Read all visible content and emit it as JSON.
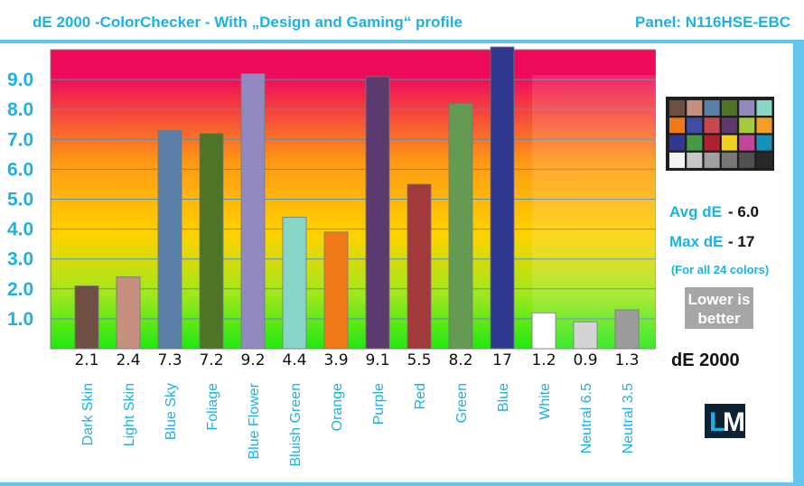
{
  "header": {
    "title": "dE 2000 -ColorChecker - With „Design and Gaming“ profile",
    "panel": "Panel: N116HSE-EBC"
  },
  "stats": {
    "avg_label": "Avg dE",
    "avg_value": "- 6.0",
    "max_label": "Max dE",
    "max_value": "- 17",
    "note": "(For all 24 colors)",
    "lower_line1": "Lower is",
    "lower_line2": "better",
    "metric": "dE 2000"
  },
  "logo": {
    "text_l": "L",
    "text_m": "M"
  },
  "colors": {
    "accent": "#1ab2e6",
    "frame": "#63c6ec",
    "gradient_top": "#ee0a5a",
    "gradient_mid": "#ffd200",
    "gradient_bottom": "#20e812"
  },
  "chart_data": {
    "type": "bar",
    "title": "dE 2000 -ColorChecker - With „Design and Gaming“ profile",
    "ylim": [
      0,
      10
    ],
    "ytick_labels": [
      "1.0",
      "2.0",
      "3.0",
      "4.0",
      "5.0",
      "6.0",
      "7.0",
      "8.0",
      "9.0"
    ],
    "yticks": [
      1,
      2,
      3,
      4,
      5,
      6,
      7,
      8,
      9
    ],
    "grid": true,
    "categories": [
      "Dark Skin",
      "Light Skin",
      "Blue Sky",
      "Foliage",
      "Blue Flower",
      "Bluish Green",
      "Orange",
      "Purple",
      "Red",
      "Green",
      "Blue",
      "White",
      "Neutral 6.5",
      "Neutral 3.5"
    ],
    "values": [
      2.1,
      2.4,
      7.3,
      7.2,
      9.2,
      4.4,
      3.9,
      9.1,
      5.5,
      8.2,
      17,
      1.2,
      0.9,
      1.3
    ],
    "value_labels": [
      "2.1",
      "2.4",
      "7.3",
      "7.2",
      "9.2",
      "4.4",
      "3.9",
      "9.1",
      "5.5",
      "8.2",
      "17",
      "1.2",
      "0.9",
      "1.3"
    ],
    "bar_colors": [
      "#6f4f44",
      "#c69080",
      "#5a7fa8",
      "#4e7428",
      "#9189bf",
      "#86d5c6",
      "#ef7818",
      "#5c3a70",
      "#a23a3c",
      "#659a52",
      "#303890",
      "#ffffff",
      "#d4d4d4",
      "#9c9c9c"
    ],
    "checker_swatches": [
      "#6f4f44",
      "#c69080",
      "#5a7fa8",
      "#4e7428",
      "#9189bf",
      "#86d5c6",
      "#ef7818",
      "#404ca0",
      "#c84850",
      "#5c3a70",
      "#a8c840",
      "#f0a028",
      "#303890",
      "#489848",
      "#b02030",
      "#f0d020",
      "#c04898",
      "#1890b8",
      "#f4f4f4",
      "#c8c8c8",
      "#a0a0a0",
      "#787878",
      "#505050",
      "#282828"
    ]
  }
}
